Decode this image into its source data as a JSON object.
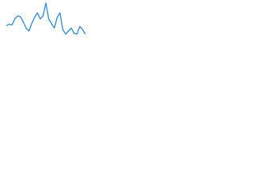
{
  "chart_data": {
    "type": "line",
    "color": "#3b8fd8",
    "ylim": [
      0,
      45
    ],
    "values": [
      12,
      14,
      13,
      21,
      25,
      24,
      17,
      9,
      5,
      15,
      23,
      29,
      21,
      25,
      42,
      21,
      15,
      9,
      23,
      29,
      7,
      1,
      5,
      9,
      2,
      1,
      11,
      7,
      1
    ]
  }
}
